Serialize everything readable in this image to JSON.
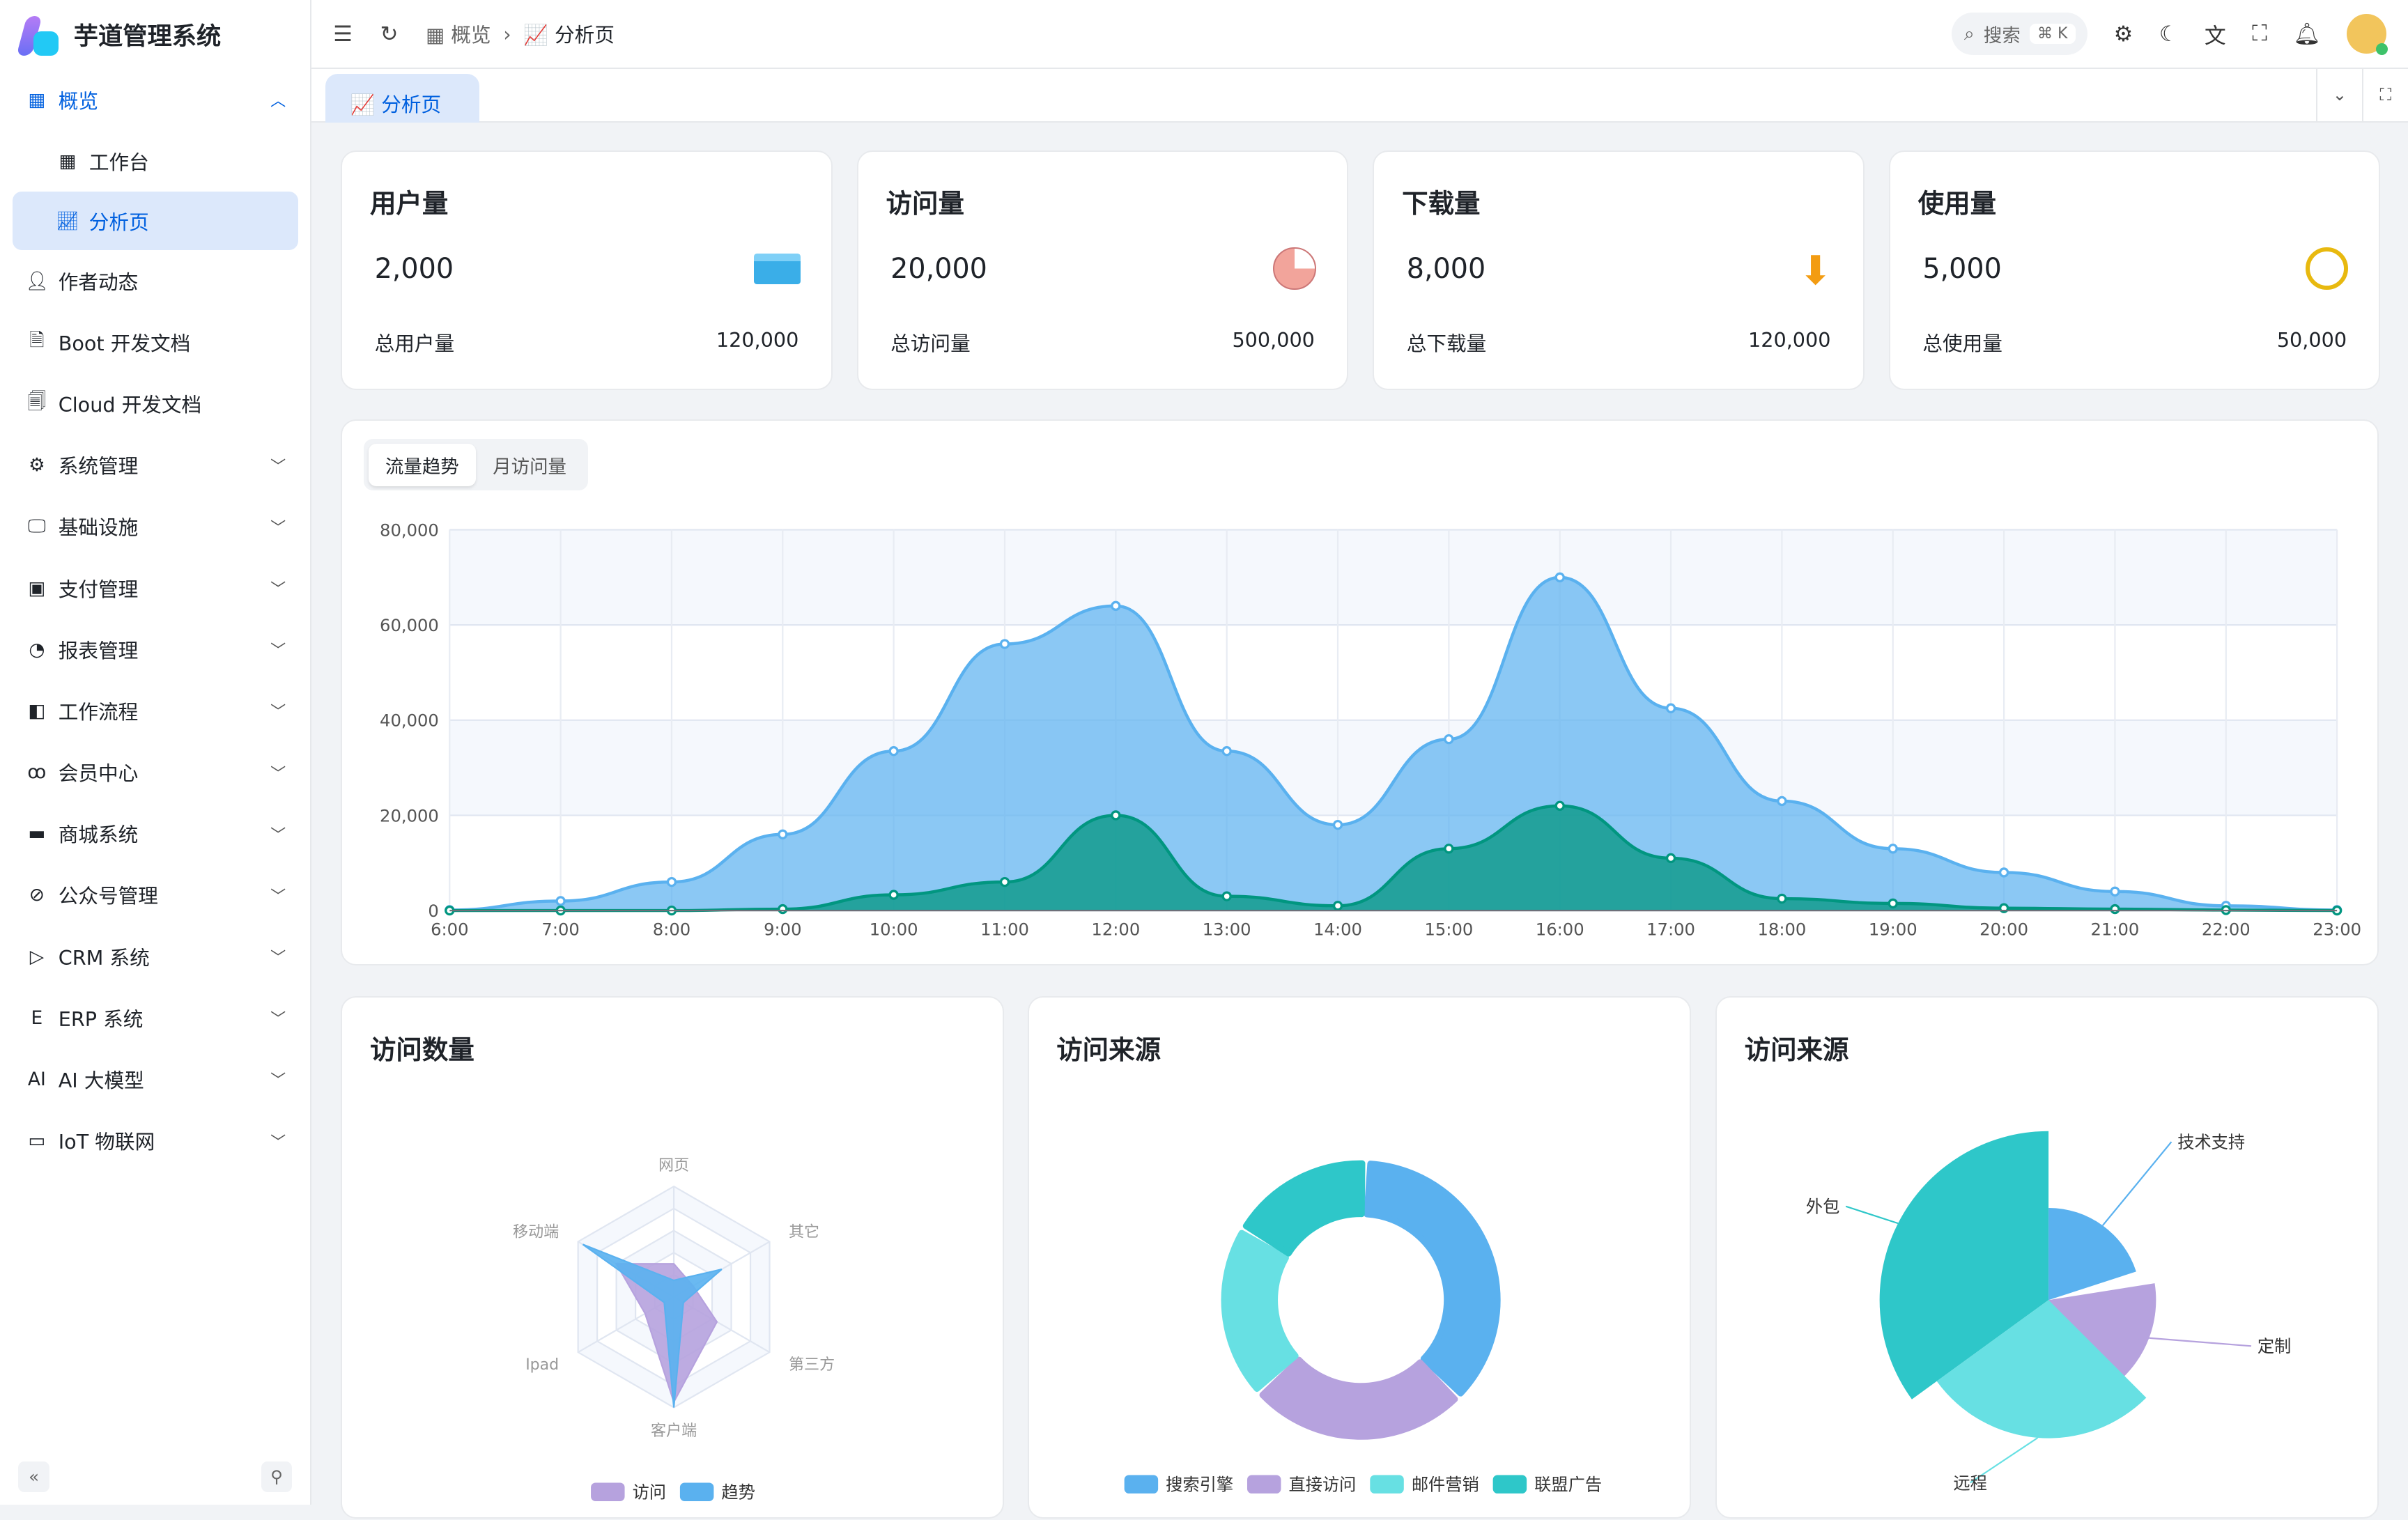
{
  "app": {
    "title": "芋道管理系统"
  },
  "sidebar": {
    "items": [
      {
        "label": "概览",
        "icon": "grid-icon",
        "open": true
      },
      {
        "label": "工作台",
        "icon": "grid-icon",
        "sub": true
      },
      {
        "label": "分析页",
        "icon": "chart-icon",
        "sub": true,
        "active": true
      },
      {
        "label": "作者动态",
        "icon": "user-icon"
      },
      {
        "label": "Boot 开发文档",
        "icon": "document-icon"
      },
      {
        "label": "Cloud 开发文档",
        "icon": "documents-icon"
      },
      {
        "label": "系统管理",
        "icon": "gear-icon",
        "chev": true
      },
      {
        "label": "基础设施",
        "icon": "monitor-icon",
        "chev": true
      },
      {
        "label": "支付管理",
        "icon": "payment-icon",
        "chev": true
      },
      {
        "label": "报表管理",
        "icon": "pie-icon",
        "chev": true
      },
      {
        "label": "工作流程",
        "icon": "workflow-icon",
        "chev": true
      },
      {
        "label": "会员中心",
        "icon": "bike-icon",
        "chev": true
      },
      {
        "label": "商城系统",
        "icon": "shop-icon",
        "chev": true
      },
      {
        "label": "公众号管理",
        "icon": "compass-icon",
        "chev": true
      },
      {
        "label": "CRM 系统",
        "icon": "crm-icon",
        "chev": true
      },
      {
        "label": "ERP 系统",
        "icon": "erp-icon",
        "chev": true
      },
      {
        "label": "AI 大模型",
        "icon": "ai-icon",
        "chev": true
      },
      {
        "label": "IoT 物联网",
        "icon": "iot-icon",
        "chev": true
      }
    ]
  },
  "header": {
    "breadcrumb": [
      "概览",
      "分析页"
    ],
    "search_placeholder": "搜索",
    "search_shortcut": "⌘ K"
  },
  "tabs": [
    {
      "label": "分析页"
    }
  ],
  "stats": [
    {
      "title": "用户量",
      "value": "2,000",
      "total_label": "总用户量",
      "total": "120,000",
      "icon": "card-icon"
    },
    {
      "title": "访问量",
      "value": "20,000",
      "total_label": "总访问量",
      "total": "500,000",
      "icon": "pie-icon"
    },
    {
      "title": "下载量",
      "value": "8,000",
      "total_label": "总下载量",
      "total": "120,000",
      "icon": "download-icon"
    },
    {
      "title": "使用量",
      "value": "5,000",
      "total_label": "总使用量",
      "total": "50,000",
      "icon": "clock-icon"
    }
  ],
  "trend": {
    "tabs": [
      "流量趋势",
      "月访问量"
    ]
  },
  "chart_data": [
    {
      "type": "area",
      "x": [
        "6:00",
        "7:00",
        "8:00",
        "9:00",
        "10:00",
        "11:00",
        "12:00",
        "13:00",
        "14:00",
        "15:00",
        "16:00",
        "17:00",
        "18:00",
        "19:00",
        "20:00",
        "21:00",
        "22:00",
        "23:00"
      ],
      "ylim": [
        0,
        80000
      ],
      "yticks": [
        "0",
        "20,000",
        "40,000",
        "60,000",
        "80,000"
      ],
      "grid": true,
      "series": [
        {
          "color": "#5ab1ef",
          "values": [
            100,
            2000,
            6000,
            16000,
            33500,
            56000,
            64000,
            33500,
            18000,
            36000,
            70000,
            42500,
            23000,
            13000,
            8000,
            4000,
            1000,
            100
          ]
        },
        {
          "color": "#019680",
          "values": [
            0,
            0,
            0,
            300,
            3300,
            6000,
            20000,
            3000,
            1000,
            13000,
            22000,
            11000,
            2500,
            1500,
            500,
            300,
            100,
            0
          ]
        }
      ]
    },
    {
      "type": "radar",
      "title": "访问数量",
      "indicators": [
        "网页",
        "其它",
        "第三方",
        "客户端",
        "Ipad",
        "移动端"
      ],
      "series": [
        {
          "name": "访问",
          "color": "#b6a2de",
          "values": [
            0.3,
            0.2,
            0.45,
            0.95,
            0.3,
            0.6
          ]
        },
        {
          "name": "趋势",
          "color": "#5ab1ef",
          "values": [
            0.15,
            0.5,
            0.1,
            1.0,
            0.1,
            0.95
          ]
        }
      ]
    },
    {
      "type": "pie",
      "title": "访问来源",
      "variant": "donut",
      "categories": [
        "搜索引擎",
        "直接访问",
        "邮件营销",
        "联盟广告"
      ],
      "values": [
        1048,
        735,
        580,
        484
      ],
      "colors": [
        "#5ab1ef",
        "#b6a2de",
        "#67e0e3",
        "#2ec7c9"
      ]
    },
    {
      "type": "pie",
      "title": "访问来源",
      "variant": "rose",
      "categories": [
        "外包",
        "定制",
        "技术支持",
        "远程"
      ],
      "values": [
        500,
        310,
        274,
        400
      ],
      "colors": [
        "#2ec7c9",
        "#b6a2de",
        "#5ab1ef",
        "#67e0e3"
      ]
    }
  ]
}
